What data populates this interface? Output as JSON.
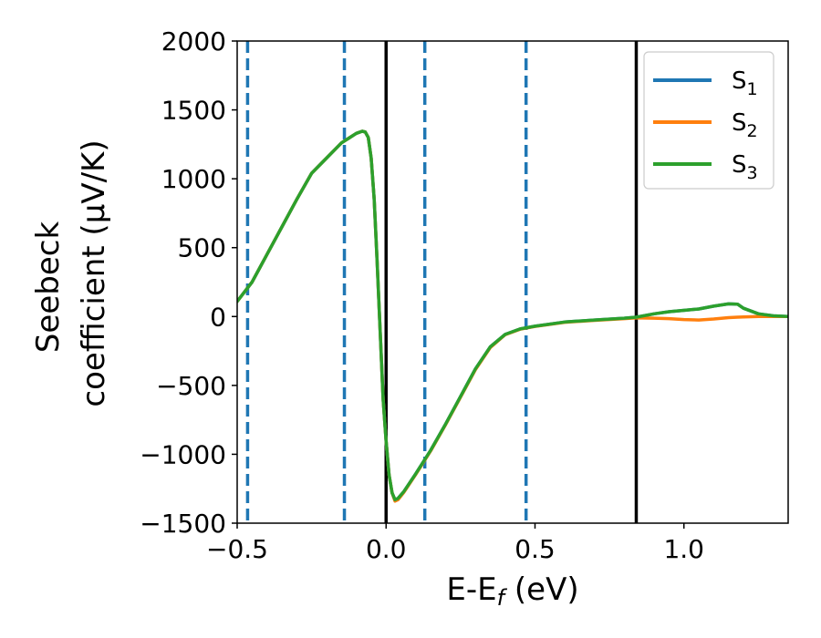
{
  "chart_data": {
    "type": "line",
    "xlabel": "E-E",
    "xlabel_sub": "f",
    "xlabel_unit": " (eV)",
    "ylabel_line1": "Seebeck",
    "ylabel_line2": "coefficient  (μV/K)",
    "xlim": [
      -0.5,
      1.35
    ],
    "ylim": [
      -1500,
      2000
    ],
    "xticks": [
      -0.5,
      0.0,
      0.5,
      1.0
    ],
    "xtick_labels": [
      "−0.5",
      "0.0",
      "0.5",
      "1.0"
    ],
    "yticks": [
      -1500,
      -1000,
      -500,
      0,
      500,
      1000,
      1500,
      2000
    ],
    "ytick_labels": [
      "−1500",
      "−1000",
      "−500",
      "0",
      "500",
      "1000",
      "1500",
      "2000"
    ],
    "legend_position": "top-right",
    "vertical_lines": [
      {
        "x": -0.465,
        "style": "dashed",
        "color": "#1f77b4"
      },
      {
        "x": -0.14,
        "style": "dashed",
        "color": "#1f77b4"
      },
      {
        "x": 0.13,
        "style": "dashed",
        "color": "#1f77b4"
      },
      {
        "x": 0.47,
        "style": "dashed",
        "color": "#1f77b4"
      },
      {
        "x": 0.0,
        "style": "solid",
        "color": "#000000"
      },
      {
        "x": 0.84,
        "style": "solid",
        "color": "#000000"
      }
    ],
    "x": [
      -0.5,
      -0.45,
      -0.4,
      -0.35,
      -0.3,
      -0.25,
      -0.2,
      -0.15,
      -0.1,
      -0.08,
      -0.07,
      -0.06,
      -0.05,
      -0.04,
      -0.03,
      -0.02,
      -0.01,
      0.0,
      0.01,
      0.02,
      0.03,
      0.04,
      0.06,
      0.1,
      0.15,
      0.2,
      0.25,
      0.3,
      0.35,
      0.4,
      0.45,
      0.5,
      0.55,
      0.6,
      0.7,
      0.8,
      0.84,
      0.9,
      0.95,
      1.0,
      1.05,
      1.1,
      1.15,
      1.18,
      1.2,
      1.25,
      1.3,
      1.35
    ],
    "series": [
      {
        "name": "S",
        "name_sub": "1",
        "color": "#1f77b4",
        "values": [
          110,
          250,
          450,
          650,
          850,
          1040,
          1150,
          1260,
          1330,
          1345,
          1340,
          1300,
          1150,
          850,
          400,
          -100,
          -600,
          -900,
          -1150,
          -1280,
          -1330,
          -1320,
          -1270,
          -1140,
          -970,
          -780,
          -580,
          -380,
          -220,
          -130,
          -90,
          -70,
          -55,
          -40,
          -25,
          -12,
          -5,
          20,
          35,
          45,
          55,
          75,
          92,
          90,
          60,
          20,
          5,
          0
        ]
      },
      {
        "name": "S",
        "name_sub": "2",
        "color": "#ff7f0e",
        "values": [
          110,
          250,
          450,
          650,
          850,
          1040,
          1150,
          1260,
          1330,
          1345,
          1340,
          1300,
          1150,
          850,
          400,
          -100,
          -600,
          -900,
          -1150,
          -1280,
          -1340,
          -1330,
          -1275,
          -1145,
          -975,
          -785,
          -585,
          -385,
          -225,
          -132,
          -92,
          -72,
          -57,
          -42,
          -28,
          -15,
          -10,
          -12,
          -15,
          -22,
          -25,
          -18,
          -8,
          -5,
          -3,
          0,
          0,
          0
        ]
      },
      {
        "name": "S",
        "name_sub": "3",
        "color": "#2ca02c",
        "values": [
          110,
          250,
          450,
          650,
          850,
          1040,
          1150,
          1260,
          1330,
          1345,
          1340,
          1300,
          1150,
          850,
          400,
          -100,
          -600,
          -900,
          -1150,
          -1280,
          -1330,
          -1320,
          -1270,
          -1140,
          -970,
          -780,
          -580,
          -380,
          -220,
          -130,
          -90,
          -70,
          -55,
          -40,
          -25,
          -12,
          -5,
          20,
          35,
          45,
          55,
          75,
          92,
          90,
          60,
          20,
          5,
          0
        ]
      }
    ]
  }
}
